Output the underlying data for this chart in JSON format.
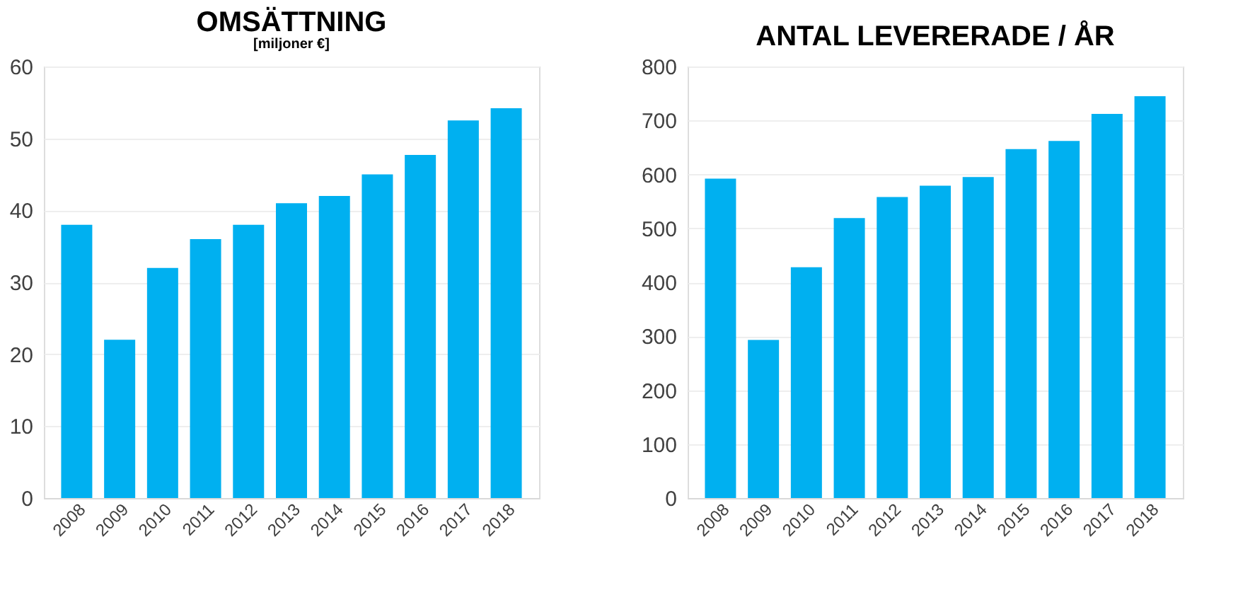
{
  "chart_data": [
    {
      "type": "bar",
      "title": "OMSÄTTNING",
      "subtitle": "[miljoner €]",
      "categories": [
        "2008",
        "2009",
        "2010",
        "2011",
        "2012",
        "2013",
        "2014",
        "2015",
        "2016",
        "2017",
        "2018"
      ],
      "series": [
        {
          "color": "#00b0f0",
          "values": [
            38,
            22,
            32,
            36,
            38,
            41,
            42,
            45,
            47.7,
            52.5,
            54.2
          ]
        }
      ],
      "ylim": [
        0,
        60
      ],
      "yticks": [
        0,
        10,
        20,
        30,
        40,
        50,
        60
      ],
      "grid": "y",
      "legend": false
    },
    {
      "type": "bar",
      "title": "ANTAL LEVERERADE / ÅR",
      "categories": [
        "2008",
        "2009",
        "2010",
        "2011",
        "2012",
        "2013",
        "2014",
        "2015",
        "2016",
        "2017",
        "2018"
      ],
      "series": [
        {
          "color": "#00b0f0",
          "values": [
            592,
            293,
            428,
            519,
            558,
            579,
            595,
            647,
            662,
            712,
            745
          ]
        }
      ],
      "ylim": [
        0,
        800
      ],
      "yticks": [
        0,
        100,
        200,
        300,
        400,
        500,
        600,
        700,
        800
      ],
      "grid": "y",
      "legend": false
    }
  ]
}
